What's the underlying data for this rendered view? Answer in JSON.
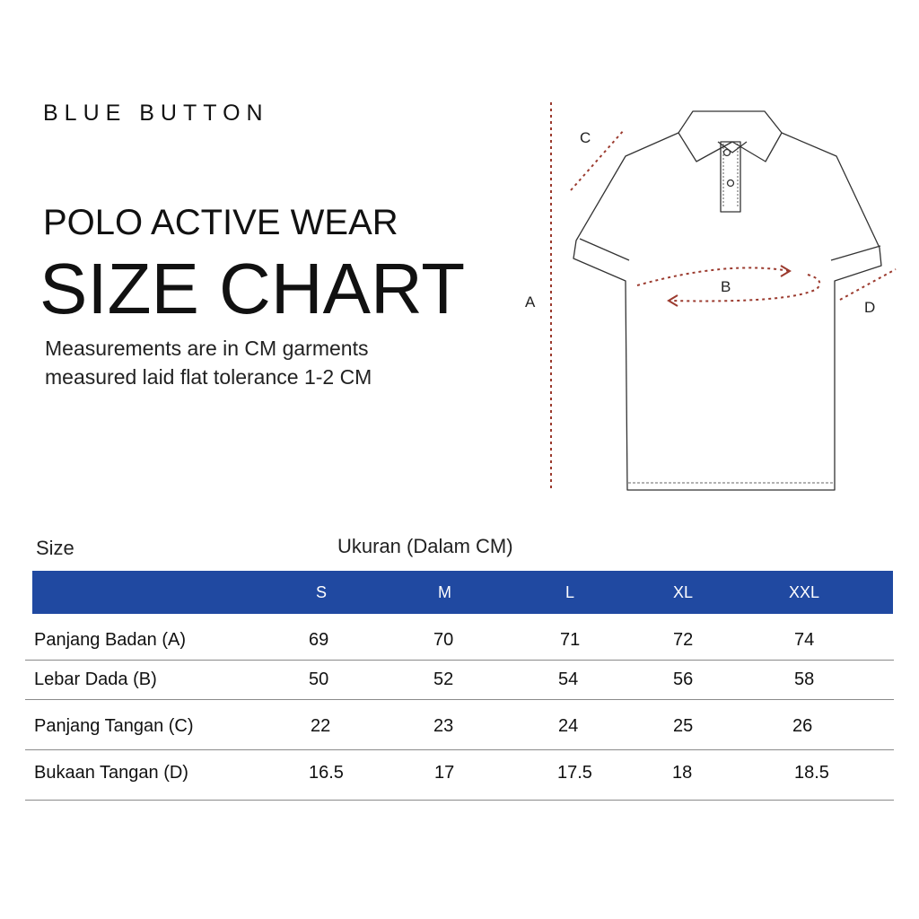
{
  "brand": "BLUE BUTTON",
  "subtitle": "POLO ACTIVE WEAR",
  "title": "SIZE CHART",
  "note": {
    "line1": "Measurements are in CM garments",
    "line2": "measured laid flat tolerance 1-2 CM"
  },
  "diagram": {
    "label_a": "A",
    "label_b": "B",
    "label_c": "C",
    "label_d": "D",
    "measure_color": "#9b3a2e"
  },
  "table": {
    "size_label": "Size",
    "unit_label": "Ukuran (Dalam CM)",
    "header_color": "#2049a1",
    "columns": [
      "S",
      "M",
      "L",
      "XL",
      "XXL"
    ],
    "rows": [
      {
        "label": "Panjang Badan (A)",
        "values": [
          "69",
          "70",
          "71",
          "72",
          "74"
        ]
      },
      {
        "label": "Lebar Dada (B)",
        "values": [
          "50",
          "52",
          "54",
          "56",
          "58"
        ]
      },
      {
        "label": "Panjang Tangan (C)",
        "values": [
          "22",
          "23",
          "24",
          "25",
          "26"
        ]
      },
      {
        "label": "Bukaan Tangan (D)",
        "values": [
          "16.5",
          "17",
          "17.5",
          "18",
          "18.5"
        ]
      }
    ]
  }
}
